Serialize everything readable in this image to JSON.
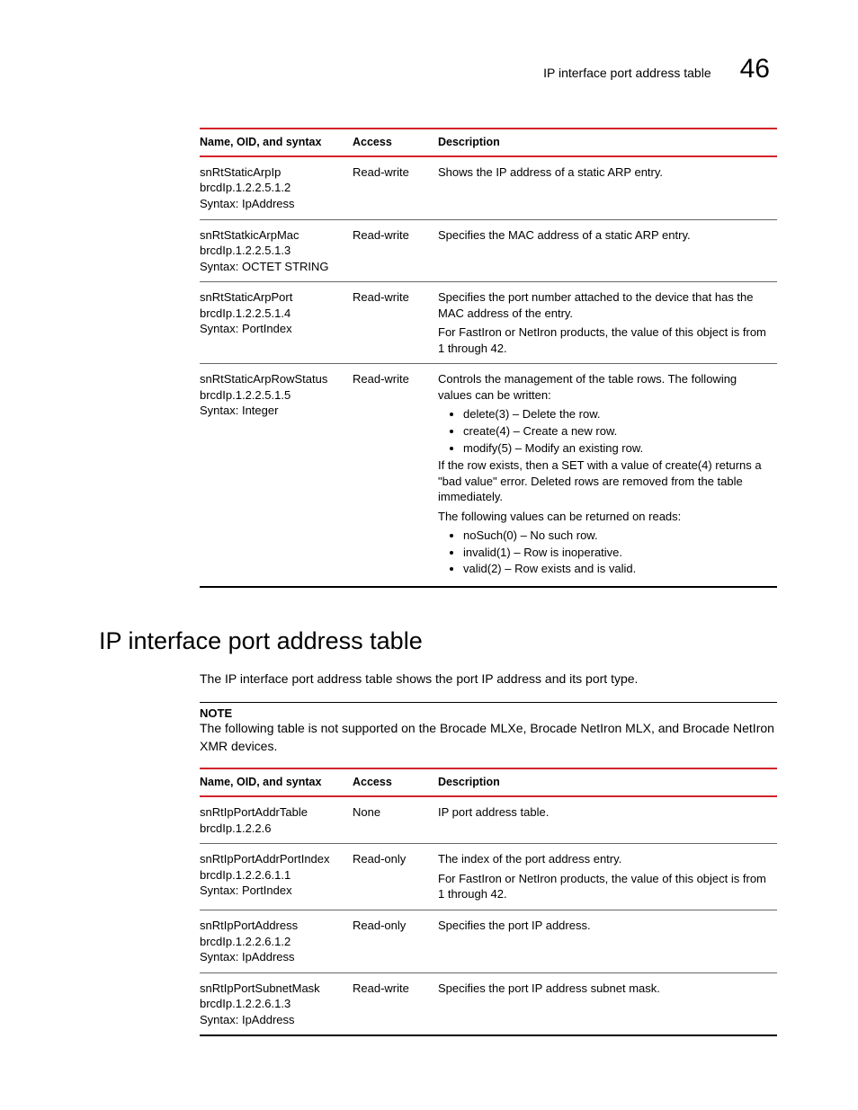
{
  "header": {
    "running_title": "IP interface port address table",
    "chapter_number": "46"
  },
  "colors": {
    "rule": "#d2232a",
    "text": "#000000",
    "background": "#ffffff"
  },
  "table1": {
    "headers": {
      "name": "Name, OID, and syntax",
      "access": "Access",
      "description": "Description"
    },
    "rows": [
      {
        "name_lines": [
          "snRtStaticArpIp",
          "brcdIp.1.2.2.5.1.2",
          "Syntax: IpAddress"
        ],
        "access": "Read-write",
        "desc_paras": [
          "Shows the IP address of a static ARP entry."
        ]
      },
      {
        "name_lines": [
          "snRtStatkicArpMac",
          "brcdIp.1.2.2.5.1.3",
          "Syntax: OCTET STRING"
        ],
        "access": "Read-write",
        "desc_paras": [
          "Specifies the MAC address of a static ARP entry."
        ]
      },
      {
        "name_lines": [
          "snRtStaticArpPort",
          "brcdIp.1.2.2.5.1.4",
          "Syntax: PortIndex"
        ],
        "access": "Read-write",
        "desc_paras": [
          "Specifies the port number attached to the device that has the MAC address of the entry.",
          "For FastIron or NetIron products, the value of this object is from 1 through 42."
        ]
      },
      {
        "name_lines": [
          "snRtStaticArpRowStatus",
          "brcdIp.1.2.2.5.1.5",
          "Syntax: Integer"
        ],
        "access": "Read-write",
        "desc_complex": {
          "intro": "Controls the management of the table rows. The following values can be written:",
          "list1": [
            "delete(3) – Delete the row.",
            "create(4) – Create a new row.",
            "modify(5) – Modify an existing row."
          ],
          "mid1": "If the row exists, then a SET with a value of create(4) returns a \"bad value\" error. Deleted rows are removed from the table immediately.",
          "mid2": "The following values can be returned on reads:",
          "list2": [
            "noSuch(0) – No such row.",
            "invalid(1) – Row is inoperative.",
            "valid(2) – Row exists and is valid."
          ]
        }
      }
    ]
  },
  "section": {
    "heading": "IP interface port address table",
    "intro": "The IP interface port address table shows the port IP address and its port type.",
    "note_label": "NOTE",
    "note_text": "The following table is not supported on the Brocade MLXe, Brocade NetIron MLX, and Brocade NetIron XMR devices."
  },
  "table2": {
    "headers": {
      "name": "Name, OID, and syntax",
      "access": "Access",
      "description": "Description"
    },
    "rows": [
      {
        "name_lines": [
          "snRtIpPortAddrTable",
          "brcdIp.1.2.2.6"
        ],
        "access": "None",
        "desc_paras": [
          "IP port address table."
        ]
      },
      {
        "name_lines": [
          "snRtIpPortAddrPortIndex",
          "brcdIp.1.2.2.6.1.1",
          "Syntax: PortIndex"
        ],
        "access": "Read-only",
        "desc_paras": [
          "The index of the port address entry.",
          "For FastIron or NetIron products, the value of this object is from 1 through 42."
        ]
      },
      {
        "name_lines": [
          "snRtIpPortAddress",
          "brcdIp.1.2.2.6.1.2",
          "Syntax: IpAddress"
        ],
        "access": "Read-only",
        "desc_paras": [
          "Specifies the port IP address."
        ]
      },
      {
        "name_lines": [
          "snRtIpPortSubnetMask",
          "brcdIp.1.2.2.6.1.3",
          "Syntax: IpAddress"
        ],
        "access": "Read-write",
        "desc_paras": [
          "Specifies the port IP address subnet mask."
        ]
      }
    ]
  }
}
